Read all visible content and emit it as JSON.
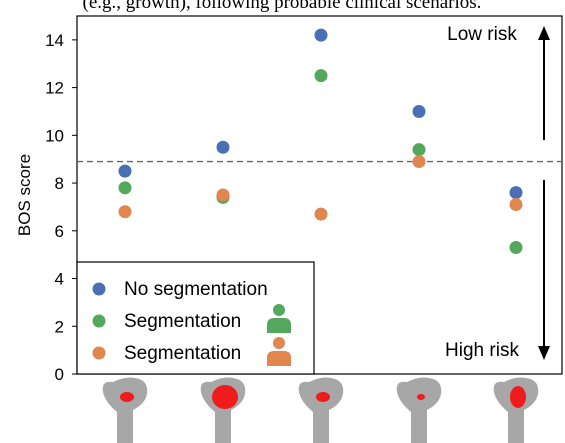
{
  "caption_fragment": "(e.g., growth), following probable clinical scenarios.",
  "chart_data": {
    "type": "scatter",
    "title": "",
    "xlabel": "",
    "ylabel": "BOS score",
    "ylim": [
      0,
      15
    ],
    "yticks": [
      0,
      2,
      4,
      6,
      8,
      10,
      12,
      14
    ],
    "x": [
      1,
      2,
      3,
      4,
      5
    ],
    "threshold": 8.9,
    "grid": false,
    "legend_position": "bottom-left",
    "series": [
      {
        "name": "No segmentation",
        "color": "#4a6fb5",
        "values": [
          8.5,
          9.5,
          14.2,
          11.0,
          7.6
        ]
      },
      {
        "name": "Segmentation",
        "color": "#54a85e",
        "icon": "person-icon-green",
        "values": [
          7.8,
          7.4,
          12.5,
          9.4,
          5.3
        ]
      },
      {
        "name": "Segmentation",
        "color": "#e0864e",
        "icon": "person-icon-orange",
        "values": [
          6.8,
          7.5,
          6.7,
          8.9,
          7.1
        ]
      }
    ],
    "annotations": {
      "low_risk": "Low risk",
      "high_risk": "High risk"
    },
    "femur_lesions": [
      "small",
      "large",
      "small",
      "tiny",
      "medium"
    ]
  }
}
